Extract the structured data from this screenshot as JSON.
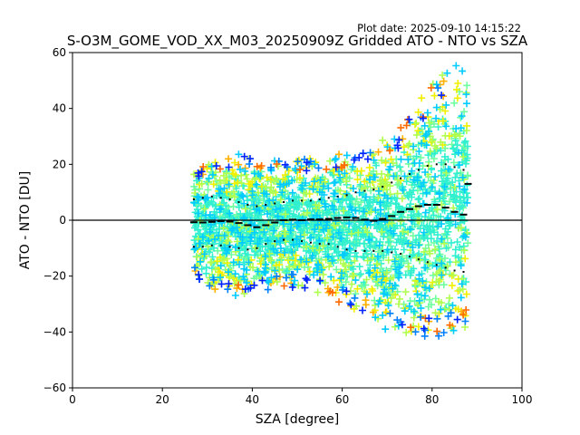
{
  "plot_date": "Plot date: 2025-09-10 14:15:22",
  "chart_data": {
    "type": "scatter",
    "title": "S-O3M_GOME_VOD_XX_M03_20250909Z Gridded ATO - NTO vs SZA",
    "xlabel": "SZA [degree]",
    "ylabel": "ATO - NTO [DU]",
    "xlim": [
      0,
      100
    ],
    "ylim": [
      -60,
      60
    ],
    "xticks": [
      0,
      20,
      40,
      60,
      80,
      100
    ],
    "yticks": [
      -60,
      -40,
      -20,
      0,
      20,
      40,
      60
    ],
    "grid": false,
    "zero_line": 0,
    "scatter_colormap": [
      "#0022ff",
      "#0080ff",
      "#00ccff",
      "#30f0d0",
      "#70ffa0",
      "#b0ff50",
      "#f0f000",
      "#ffb000",
      "#ff6a00"
    ],
    "scatter_envelope": {
      "x": [
        27,
        30,
        35,
        40,
        45,
        50,
        55,
        60,
        63,
        65,
        68,
        70,
        73,
        75,
        78,
        80,
        83,
        85,
        87,
        88
      ],
      "y_upper": [
        18,
        22,
        24,
        23,
        22,
        22,
        22,
        24,
        24,
        26,
        28,
        30,
        33,
        38,
        45,
        50,
        53,
        56,
        58,
        58
      ],
      "y_lower": [
        -20,
        -25,
        -27,
        -27,
        -24,
        -24,
        -26,
        -30,
        -32,
        -33,
        -36,
        -40,
        -40,
        -42,
        -42,
        -42,
        -43,
        -42,
        -40,
        -35
      ]
    },
    "series": [
      {
        "type": "mean_line",
        "x": [
          27,
          29,
          31,
          33,
          35,
          37,
          39,
          41,
          43,
          45,
          47,
          49,
          51,
          53,
          55,
          57,
          59,
          61,
          63,
          65,
          67,
          69,
          71,
          73,
          75,
          77,
          79,
          81,
          83,
          85,
          87,
          88
        ],
        "y": [
          -0.7,
          -0.8,
          -0.6,
          -0.3,
          -0.5,
          -1.0,
          -1.8,
          -2.5,
          -1.8,
          -0.8,
          0.0,
          0.2,
          0.0,
          0.3,
          0.3,
          0.5,
          0.8,
          1.0,
          0.8,
          0.2,
          -0.2,
          0.5,
          1.5,
          3.0,
          4.0,
          5.0,
          5.5,
          5.5,
          4.5,
          3.0,
          2.0,
          13.0
        ]
      },
      {
        "type": "plus_sigma",
        "x": [
          27,
          29,
          31,
          33,
          35,
          37,
          39,
          41,
          43,
          45,
          47,
          49,
          51,
          53,
          55,
          57,
          59,
          61,
          63,
          65,
          67,
          69,
          71,
          73,
          75,
          77,
          79,
          81,
          83,
          85,
          87
        ],
        "y": [
          7.5,
          8.0,
          8.5,
          8.0,
          7.5,
          6.5,
          5.5,
          5.0,
          5.5,
          6.0,
          6.5,
          7.0,
          7.0,
          7.0,
          7.5,
          8.0,
          8.5,
          9.0,
          10.0,
          10.5,
          11.0,
          12.0,
          13.5,
          15.0,
          16.5,
          18.0,
          19.5,
          20.0,
          20.0,
          19.0,
          18.0
        ]
      },
      {
        "type": "minus_sigma",
        "x": [
          27,
          29,
          31,
          33,
          35,
          37,
          39,
          41,
          43,
          45,
          47,
          49,
          51,
          53,
          55,
          57,
          59,
          61,
          63,
          65,
          67,
          69,
          71,
          73,
          75,
          77,
          79,
          81,
          83,
          85,
          87
        ],
        "y": [
          -9.5,
          -9.5,
          -9.0,
          -9.0,
          -9.5,
          -10.0,
          -10.5,
          -10.0,
          -8.5,
          -7.5,
          -7.0,
          -7.0,
          -7.5,
          -8.0,
          -8.5,
          -8.5,
          -9.5,
          -10.5,
          -11.0,
          -11.0,
          -11.0,
          -11.0,
          -11.5,
          -12.0,
          -13.0,
          -14.0,
          -15.0,
          -16.0,
          -17.0,
          -18.0,
          -18.5
        ]
      }
    ]
  }
}
